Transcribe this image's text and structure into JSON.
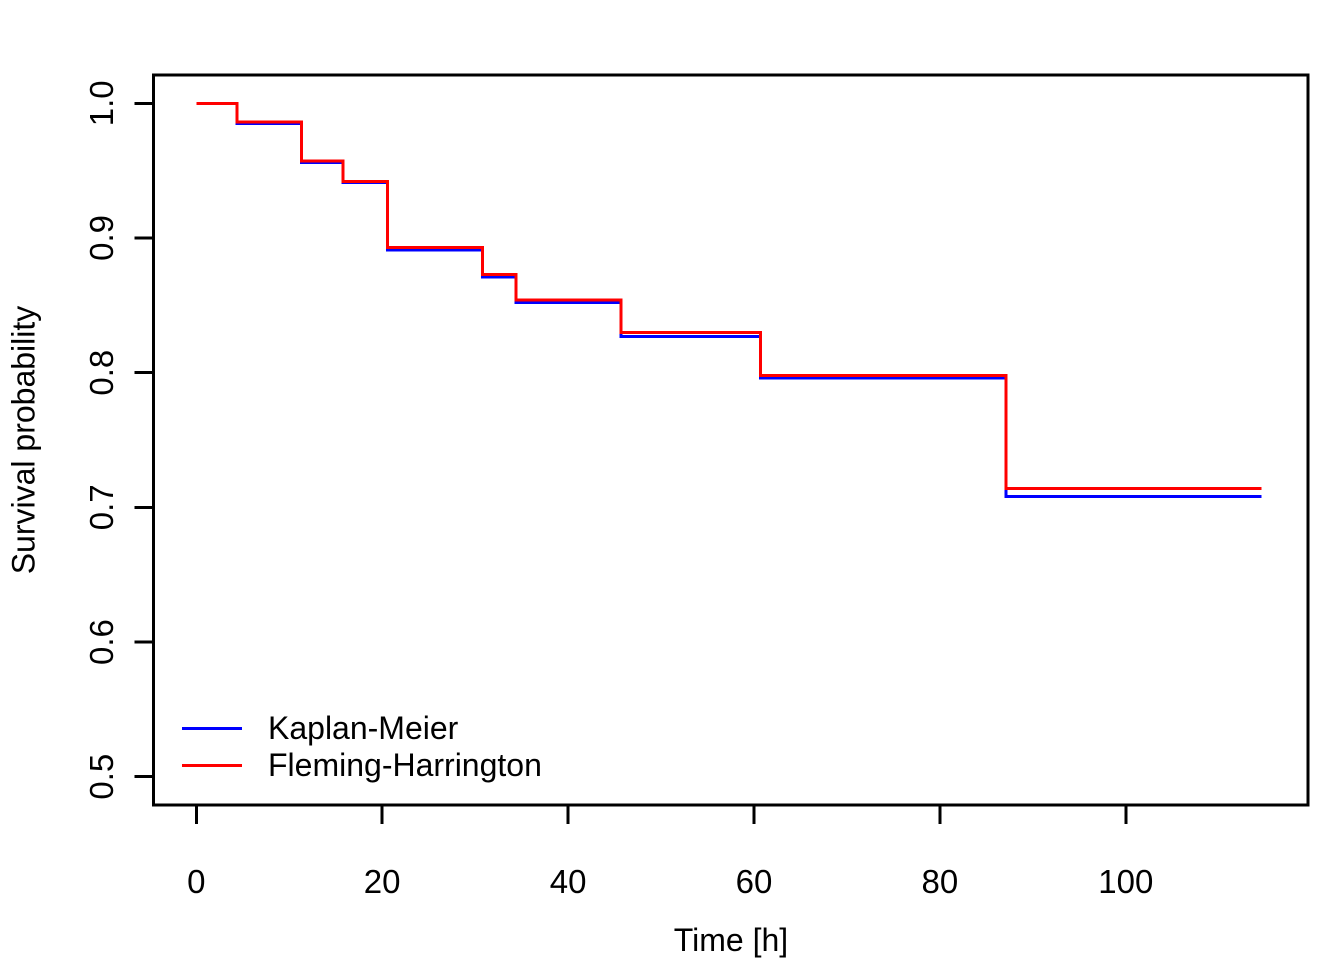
{
  "figure": {
    "background_color": "#ffffff",
    "axis_color": "#000000",
    "text_color": "#000000"
  },
  "chart_data": {
    "type": "line",
    "subtype": "step-function-survival-curves",
    "title": "",
    "xlabel": "Time [h]",
    "ylabel": "Survival probability",
    "xlim": [
      -4.6,
      119.6
    ],
    "ylim": [
      0.479,
      1.021
    ],
    "x_ticks": [
      0,
      20,
      40,
      60,
      80,
      100
    ],
    "y_ticks": [
      0.5,
      0.6,
      0.7,
      0.8,
      0.9,
      1.0
    ],
    "grid": false,
    "curve_end_time": 114.6,
    "legend": {
      "position": "bottom-left",
      "entries": [
        "Kaplan-Meier",
        "Fleming-Harrington"
      ]
    },
    "series": [
      {
        "name": "Kaplan-Meier",
        "color": "#0000ff",
        "line_width": 3,
        "x": [
          0,
          4.4,
          11.3,
          15.8,
          20.6,
          30.8,
          34.4,
          45.7,
          60.7,
          87.1
        ],
        "y": [
          1.0,
          0.985,
          0.956,
          0.941,
          0.891,
          0.871,
          0.852,
          0.827,
          0.796,
          0.708
        ]
      },
      {
        "name": "Fleming-Harrington",
        "color": "#ff0000",
        "line_width": 3,
        "x": [
          0,
          4.4,
          11.3,
          15.8,
          20.6,
          30.8,
          34.4,
          45.7,
          60.7,
          87.1
        ],
        "y": [
          1.0,
          0.986,
          0.957,
          0.942,
          0.893,
          0.873,
          0.854,
          0.83,
          0.798,
          0.714
        ]
      }
    ]
  }
}
